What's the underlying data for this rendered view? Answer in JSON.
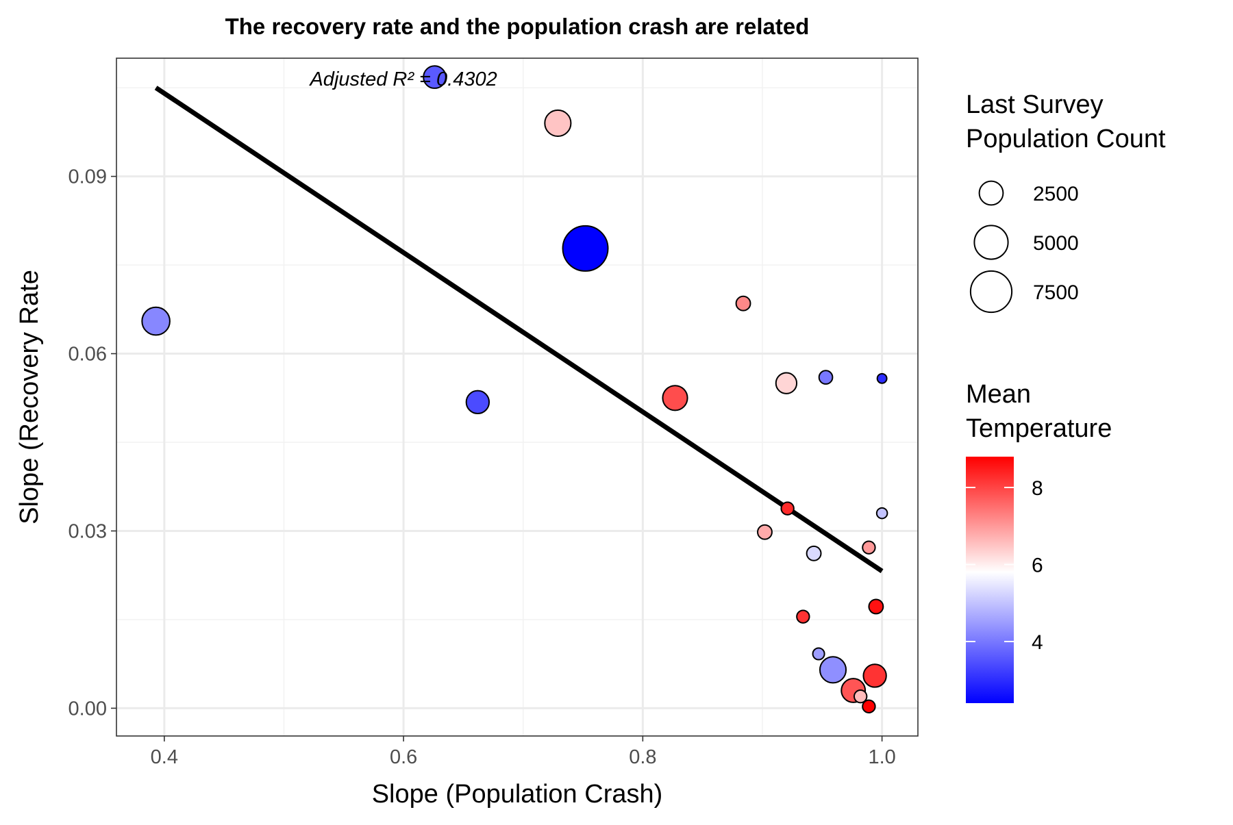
{
  "chart_data": {
    "type": "scatter",
    "title": "The recovery rate and the population crash are related",
    "xlabel": "Slope (Population Crash)",
    "ylabel": "Slope (Recovery Rate",
    "xlim": [
      0.36,
      1.03
    ],
    "ylim": [
      -0.0047,
      0.11
    ],
    "x_ticks": [
      0.4,
      0.6,
      0.8,
      1.0
    ],
    "x_tick_labels": [
      "0.4",
      "0.6",
      "0.8",
      "1.0"
    ],
    "y_ticks": [
      0.0,
      0.03,
      0.06,
      0.09
    ],
    "y_tick_labels": [
      "0.00",
      "0.03",
      "0.06",
      "0.09"
    ],
    "grid": true,
    "annotation": "Adjusted R² = 0.4302",
    "annotation_position": {
      "x": 0.6,
      "y": 0.1065
    },
    "trend_line": {
      "x": [
        0.393,
        1.0
      ],
      "y": [
        0.105,
        0.0232
      ],
      "color": "#000000"
    },
    "size_legend": {
      "title_lines": [
        "Last Survey",
        "Population Count"
      ],
      "entries": [
        {
          "label": "2500",
          "value": 2500
        },
        {
          "label": "5000",
          "value": 5000
        },
        {
          "label": "7500",
          "value": 7500
        }
      ]
    },
    "color_legend": {
      "title_lines": [
        "Mean",
        "Temperature"
      ],
      "range": [
        2.4,
        8.8
      ],
      "ticks": [
        4,
        6,
        8
      ],
      "tick_labels": [
        "4",
        "6",
        "8"
      ],
      "low_color": "#0000ff",
      "mid_color": "#ffffff",
      "high_color": "#ff0000",
      "midpoint": 5.8
    },
    "points": [
      {
        "x": 0.393,
        "y": 0.0655,
        "pop": 3400,
        "temp": 4.2
      },
      {
        "x": 0.626,
        "y": 0.1068,
        "pop": 2200,
        "temp": 3.6
      },
      {
        "x": 0.662,
        "y": 0.0518,
        "pop": 2300,
        "temp": 3.4
      },
      {
        "x": 0.729,
        "y": 0.099,
        "pop": 3000,
        "temp": 6.5
      },
      {
        "x": 0.752,
        "y": 0.0778,
        "pop": 9000,
        "temp": 2.4
      },
      {
        "x": 0.827,
        "y": 0.0525,
        "pop": 2700,
        "temp": 7.9
      },
      {
        "x": 0.884,
        "y": 0.0685,
        "pop": 900,
        "temp": 7.2
      },
      {
        "x": 0.902,
        "y": 0.0298,
        "pop": 900,
        "temp": 6.8
      },
      {
        "x": 0.92,
        "y": 0.055,
        "pop": 1900,
        "temp": 6.3
      },
      {
        "x": 0.921,
        "y": 0.0338,
        "pop": 700,
        "temp": 8.3
      },
      {
        "x": 0.934,
        "y": 0.0155,
        "pop": 700,
        "temp": 8.2
      },
      {
        "x": 0.943,
        "y": 0.0262,
        "pop": 900,
        "temp": 5.3
      },
      {
        "x": 0.947,
        "y": 0.0092,
        "pop": 600,
        "temp": 4.5
      },
      {
        "x": 0.953,
        "y": 0.056,
        "pop": 800,
        "temp": 4.0
      },
      {
        "x": 0.959,
        "y": 0.0065,
        "pop": 3000,
        "temp": 4.3
      },
      {
        "x": 0.976,
        "y": 0.003,
        "pop": 2500,
        "temp": 7.8
      },
      {
        "x": 0.982,
        "y": 0.002,
        "pop": 700,
        "temp": 6.6
      },
      {
        "x": 0.989,
        "y": 0.0272,
        "pop": 700,
        "temp": 7.0
      },
      {
        "x": 0.989,
        "y": 0.0003,
        "pop": 700,
        "temp": 8.8
      },
      {
        "x": 0.994,
        "y": 0.0055,
        "pop": 2300,
        "temp": 8.2
      },
      {
        "x": 0.995,
        "y": 0.0172,
        "pop": 900,
        "temp": 8.6
      },
      {
        "x": 1.0,
        "y": 0.0558,
        "pop": 400,
        "temp": 3.0
      },
      {
        "x": 1.0,
        "y": 0.033,
        "pop": 500,
        "temp": 5.0
      }
    ]
  }
}
